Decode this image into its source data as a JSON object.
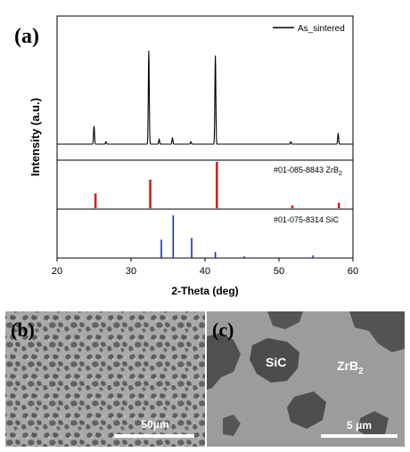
{
  "panel_labels": {
    "a": "(a)",
    "b": "(b)",
    "c": "(c)"
  },
  "colors": {
    "measured": "#000000",
    "zrb2_reference": "#d42020",
    "sic_reference": "#1a2fa8",
    "scale_bar": "#ffffff"
  },
  "chart_data": {
    "type": "line",
    "xlabel": "2-Theta (deg)",
    "ylabel": "Intensity (a.u.)",
    "xlim": [
      20,
      60
    ],
    "x_ticks": [
      20,
      30,
      40,
      50,
      60
    ],
    "grid": false,
    "legend": {
      "placement": "top-right",
      "entries": [
        "As_sintered"
      ]
    },
    "series": [
      {
        "name": "As_sintered",
        "peaks": [
          {
            "x": 25.0,
            "y": 0.15
          },
          {
            "x": 26.6,
            "y": 0.02
          },
          {
            "x": 32.4,
            "y": 0.77
          },
          {
            "x": 33.8,
            "y": 0.04
          },
          {
            "x": 35.6,
            "y": 0.05
          },
          {
            "x": 38.1,
            "y": 0.02
          },
          {
            "x": 41.4,
            "y": 0.73
          },
          {
            "x": 51.6,
            "y": 0.02
          },
          {
            "x": 58.0,
            "y": 0.09
          }
        ]
      }
    ],
    "reference_patterns": [
      {
        "label": "#01-085-8843 ZrB",
        "label_subscript": "2",
        "lines": [
          {
            "x": 25.2,
            "y": 0.32
          },
          {
            "x": 32.6,
            "y": 0.62
          },
          {
            "x": 41.6,
            "y": 1.0
          },
          {
            "x": 51.8,
            "y": 0.06
          },
          {
            "x": 58.1,
            "y": 0.12
          }
        ]
      },
      {
        "label": "#01-075-8314 SiC",
        "lines": [
          {
            "x": 34.1,
            "y": 0.43
          },
          {
            "x": 35.7,
            "y": 1.0
          },
          {
            "x": 38.2,
            "y": 0.47
          },
          {
            "x": 41.4,
            "y": 0.14
          },
          {
            "x": 45.3,
            "y": 0.04
          },
          {
            "x": 54.6,
            "y": 0.06
          }
        ]
      }
    ]
  },
  "micrographs": {
    "b": {
      "scale_label": "50μm"
    },
    "c": {
      "phase_sic": "SiC",
      "phase_zrb2": "ZrB",
      "phase_zrb2_subscript": "2",
      "scale_label": "5 μm"
    }
  }
}
